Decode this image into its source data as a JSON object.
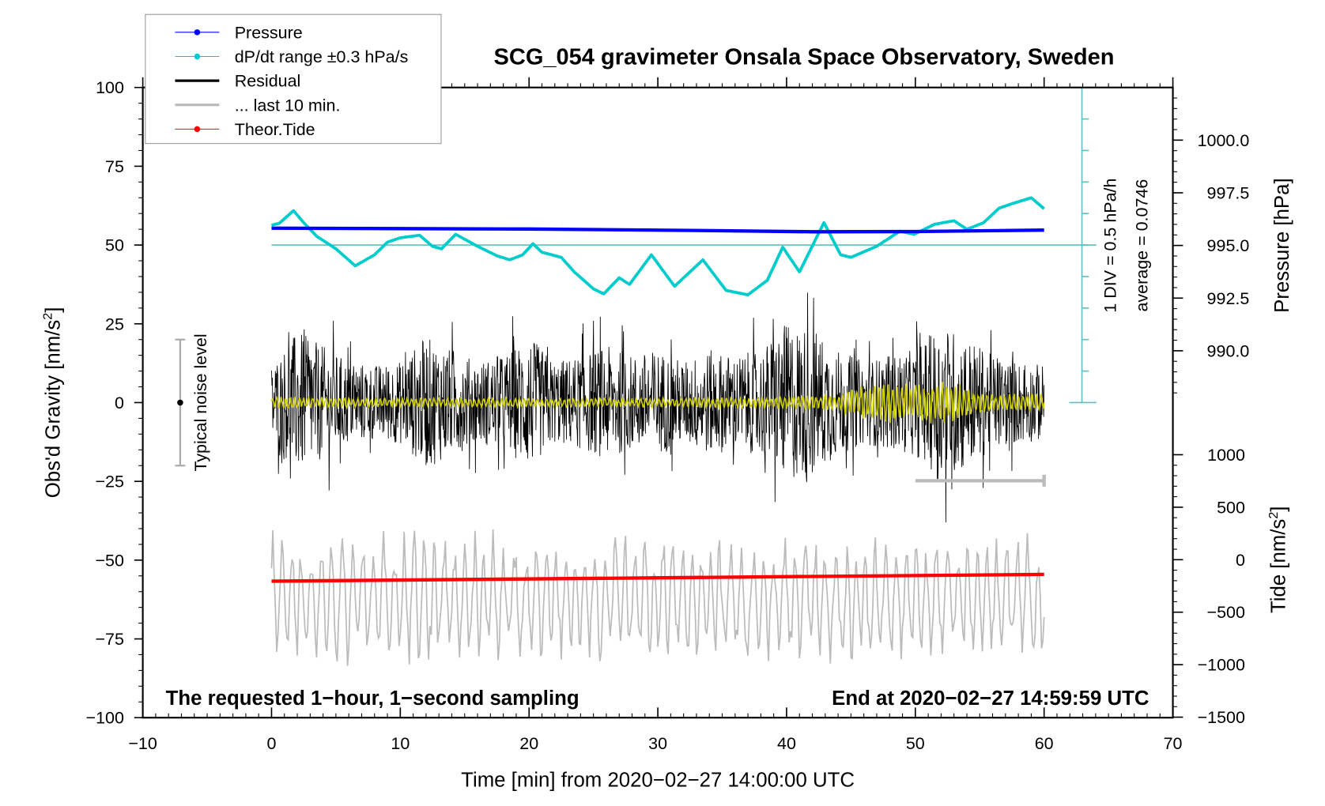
{
  "chart_data": {
    "type": "line",
    "title": "SCG_054 gravimeter Onsala Space Observatory, Sweden",
    "xlabel": "Time [min] from 2020−02−27 14:00:00 UTC",
    "ylabel_left": "Obs'd Gravity [nm/s",
    "ylabel_left_sup": "2",
    "ylabel_left_end": "]",
    "ylabel_right_pressure": "Pressure [hPa]",
    "ylabel_right_tide": "Tide [nm/s",
    "ylabel_right_tide_sup": "2",
    "ylabel_right_tide_end": "]",
    "xlim": [
      -10,
      70
    ],
    "ylim": [
      -100,
      100
    ],
    "x_ticks": [
      "−10",
      "0",
      "10",
      "20",
      "30",
      "40",
      "50",
      "60",
      "70"
    ],
    "x_tick_values": [
      -10,
      0,
      10,
      20,
      30,
      40,
      50,
      60,
      70
    ],
    "y_ticks": [
      "100",
      "75",
      "50",
      "25",
      "0",
      "−25",
      "−50",
      "−75",
      "−100"
    ],
    "y_tick_values": [
      100,
      75,
      50,
      25,
      0,
      -25,
      -50,
      -75,
      -100
    ],
    "pressure_ticks": [
      "1000.0",
      "997.5",
      "995.0",
      "992.5",
      "990.0"
    ],
    "pressure_tick_values": [
      1000.0,
      997.5,
      995.0,
      992.5,
      990.0
    ],
    "tide_ticks": [
      "1000",
      "500",
      "0",
      "−500",
      "−1000",
      "−1500"
    ],
    "tide_tick_values": [
      1000,
      500,
      0,
      -500,
      -1000,
      -1500
    ],
    "legend": {
      "placement": "top-left",
      "entries": [
        {
          "label": "Pressure",
          "color": "#0000ff",
          "marker": true
        },
        {
          "label": "dP/dt range ±0.3 hPa/s",
          "color": "#00cccc",
          "marker": true
        },
        {
          "label": "Residual",
          "color": "#000000",
          "marker": false
        },
        {
          "label": "... last 10 min.",
          "color": "#bbbbbb",
          "marker": false
        },
        {
          "label": "Theor.Tide",
          "color": "#ff0000",
          "marker": true
        }
      ]
    },
    "annotations": {
      "left_bottom": "The requested 1−hour, 1−second sampling",
      "right_bottom": "End at 2020−02−27 14:59:59 UTC",
      "noise_label": "Typical noise level",
      "div_label": "1 DIV = 0.5 hPa/h",
      "average_label": "average = 0.0746"
    },
    "series": [
      {
        "name": "Pressure",
        "axis": "pressure_hPa",
        "color": "#0000ff",
        "x": [
          0,
          20,
          35,
          42,
          50,
          60
        ],
        "y": [
          995.82,
          995.78,
          995.7,
          995.65,
          995.66,
          995.73
        ]
      },
      {
        "name": "dP/dt",
        "axis": "gravity_plot_units",
        "color": "#00cccc",
        "x": [
          0,
          0.6,
          1.7,
          2.5,
          3.5,
          5,
          6.5,
          8,
          9,
          10,
          11.5,
          12.5,
          13.2,
          14.3,
          16,
          17.5,
          18.5,
          19.5,
          20.3,
          21,
          22.5,
          23.5,
          25,
          25.8,
          27,
          27.8,
          29.5,
          31.3,
          33.5,
          35.3,
          37,
          38.5,
          39.7,
          41,
          42.9,
          44.2,
          45,
          47,
          48.8,
          49.9,
          51.5,
          53,
          54,
          55.3,
          56.5,
          57.5,
          59,
          60
        ],
        "y": [
          56.3,
          56.9,
          60.9,
          57.1,
          52.8,
          48.8,
          43.4,
          46.9,
          50.9,
          52.3,
          53.1,
          49.6,
          48.8,
          53.4,
          49.6,
          46.6,
          45.3,
          46.9,
          50.4,
          47.7,
          46.1,
          41.5,
          36.1,
          34.5,
          39.6,
          37.5,
          46.9,
          36.9,
          45.3,
          35.6,
          34.2,
          38.8,
          49.3,
          41.5,
          57.1,
          46.9,
          46.1,
          49.6,
          54.4,
          53.4,
          56.6,
          57.7,
          55.0,
          57.1,
          61.7,
          63.1,
          65.0,
          61.5
        ]
      },
      {
        "name": "Residual",
        "axis": "gravity_nm_s2",
        "color": "#000000",
        "kind": "envelope",
        "x": [
          0,
          2,
          4,
          6,
          8,
          10,
          12,
          14,
          16,
          18,
          20,
          22,
          24,
          26,
          28,
          30,
          32,
          34,
          36,
          38,
          40,
          42,
          44,
          46,
          48,
          50,
          52,
          54,
          56,
          58,
          60
        ],
        "amplitude": [
          20,
          38,
          30,
          22,
          20,
          22,
          35,
          28,
          22,
          25,
          35,
          22,
          25,
          30,
          25,
          28,
          22,
          28,
          25,
          28,
          42,
          40,
          28,
          22,
          25,
          28,
          42,
          35,
          25,
          22,
          20
        ]
      },
      {
        "name": "Residual smoothed",
        "axis": "gravity_nm_s2",
        "color": "#cccc00",
        "kind": "envelope",
        "x": [
          0,
          10,
          20,
          30,
          40,
          44,
          46,
          48,
          50,
          52,
          54,
          56,
          60
        ],
        "amplitude": [
          2,
          1.5,
          1.5,
          1.5,
          2,
          3,
          6,
          7,
          6,
          8,
          5,
          3,
          3
        ]
      },
      {
        "name": "... last 10 min.",
        "axis": "gravity_plot_units",
        "color": "#bbbbbb",
        "kind": "envelope",
        "center": -62,
        "amplitude_max": 22
      },
      {
        "name": "Theor.Tide",
        "axis": "tide_nm_s2",
        "color": "#ff0000",
        "x": [
          0,
          60
        ],
        "y": [
          -205,
          -140
        ]
      }
    ],
    "scale_bars": {
      "noise_level_range": [
        -20,
        20
      ],
      "last10_min_span": [
        50,
        60
      ],
      "pressure_rate_divisions": 10
    },
    "grid": false
  }
}
